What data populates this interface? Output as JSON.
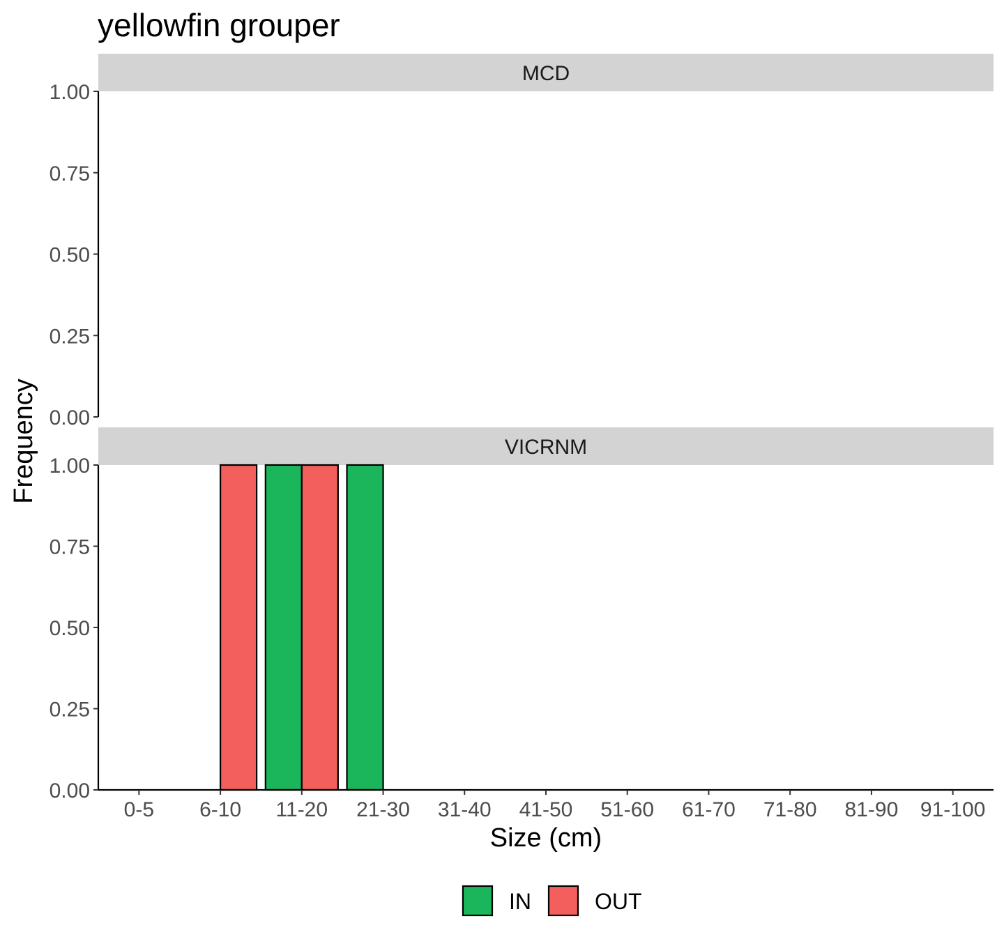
{
  "chart_data": {
    "type": "bar",
    "title": "yellowfin grouper",
    "xlabel": "Size (cm)",
    "ylabel": "Frequency",
    "ylim": [
      0,
      1
    ],
    "yticks": [
      "0.00",
      "0.25",
      "0.50",
      "0.75",
      "1.00"
    ],
    "categories": [
      "0-5",
      "6-10",
      "11-20",
      "21-30",
      "31-40",
      "41-50",
      "51-60",
      "61-70",
      "71-80",
      "81-90",
      "91-100"
    ],
    "legend": {
      "position": "bottom",
      "entries": [
        "IN",
        "OUT"
      ]
    },
    "colors": {
      "IN": "#1bb65b",
      "OUT": "#f25f5c",
      "strip": "#d3d3d3",
      "outline": "#000000"
    },
    "grid": false,
    "panels": [
      {
        "name": "MCD",
        "series": [
          {
            "name": "IN",
            "values": [
              0,
              0,
              0,
              0,
              0,
              0,
              0,
              0,
              0,
              0,
              0
            ]
          },
          {
            "name": "OUT",
            "values": [
              0,
              0,
              0,
              0,
              0,
              0,
              0,
              0,
              0,
              0,
              0
            ]
          }
        ]
      },
      {
        "name": "VICRNM",
        "series": [
          {
            "name": "IN",
            "values": [
              0,
              0,
              1,
              1,
              0,
              0,
              0,
              0,
              0,
              0,
              0
            ]
          },
          {
            "name": "OUT",
            "values": [
              0,
              1,
              1,
              0,
              0,
              0,
              0,
              0,
              0,
              0,
              0
            ]
          }
        ]
      }
    ]
  }
}
